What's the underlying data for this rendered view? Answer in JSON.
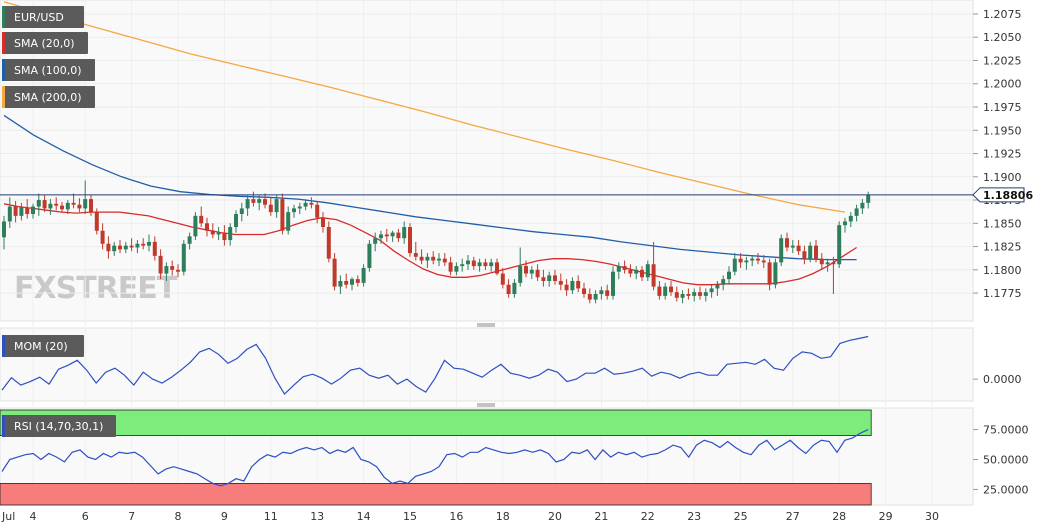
{
  "colors": {
    "up": "#2e7d5b",
    "down": "#c0392b",
    "sma20": "#d62c2c",
    "sma100": "#1f5fa8",
    "sma200": "#f5a742",
    "price_line": "#1f3c74",
    "mom": "#2d4fc2",
    "rsi": "#2d4fc2",
    "rsi_over": "#7dec7d",
    "rsi_under": "#f77c7c",
    "legend_bg": "#5a5a5a"
  },
  "watermark": "FXSTREET",
  "chart_data": {
    "type": "candlestick",
    "symbol": "EUR/USD",
    "current_price": "1.18806",
    "price_axis": {
      "ylim": [
        1.1745,
        1.209
      ],
      "ticks": [
        "1.2075",
        "1.2050",
        "1.2025",
        "1.2000",
        "1.1975",
        "1.1950",
        "1.1925",
        "1.1900",
        "1.1875",
        "1.1850",
        "1.1825",
        "1.1800",
        "1.1775"
      ]
    },
    "x_ticks": [
      {
        "label": "Jul",
        "i": 0
      },
      {
        "label": "4",
        "i": 5
      },
      {
        "label": "6",
        "i": 14
      },
      {
        "label": "7",
        "i": 22
      },
      {
        "label": "8",
        "i": 30
      },
      {
        "label": "9",
        "i": 38
      },
      {
        "label": "11",
        "i": 46
      },
      {
        "label": "13",
        "i": 54
      },
      {
        "label": "14",
        "i": 62
      },
      {
        "label": "15",
        "i": 70
      },
      {
        "label": "16",
        "i": 78
      },
      {
        "label": "18",
        "i": 86
      },
      {
        "label": "20",
        "i": 95
      },
      {
        "label": "21",
        "i": 103
      },
      {
        "label": "22",
        "i": 111
      },
      {
        "label": "23",
        "i": 119
      },
      {
        "label": "25",
        "i": 127
      },
      {
        "label": "27",
        "i": 136
      },
      {
        "label": "28",
        "i": 144
      },
      {
        "label": "29",
        "i": 152
      },
      {
        "label": "30",
        "i": 160
      }
    ],
    "candles": [
      [
        1.1835,
        1.1858,
        1.1822,
        1.1852
      ],
      [
        1.1852,
        1.1878,
        1.1845,
        1.1868
      ],
      [
        1.1868,
        1.1874,
        1.1851,
        1.1858
      ],
      [
        1.1858,
        1.1872,
        1.1853,
        1.1867
      ],
      [
        1.1867,
        1.1876,
        1.1855,
        1.186
      ],
      [
        1.186,
        1.1871,
        1.1855,
        1.1868
      ],
      [
        1.1868,
        1.1882,
        1.1858,
        1.1875
      ],
      [
        1.1875,
        1.188,
        1.1862,
        1.1866
      ],
      [
        1.1866,
        1.1876,
        1.1859,
        1.1871
      ],
      [
        1.1871,
        1.1878,
        1.1864,
        1.1869
      ],
      [
        1.1869,
        1.1873,
        1.1862,
        1.1865
      ],
      [
        1.1865,
        1.1875,
        1.186,
        1.1872
      ],
      [
        1.1872,
        1.1882,
        1.1866,
        1.187
      ],
      [
        1.187,
        1.1877,
        1.1862,
        1.1866
      ],
      [
        1.1866,
        1.1896,
        1.186,
        1.1876
      ],
      [
        1.1876,
        1.1881,
        1.1858,
        1.1862
      ],
      [
        1.1862,
        1.1866,
        1.1838,
        1.1842
      ],
      [
        1.1842,
        1.185,
        1.1822,
        1.1828
      ],
      [
        1.1828,
        1.1836,
        1.1812,
        1.182
      ],
      [
        1.182,
        1.183,
        1.1815,
        1.1826
      ],
      [
        1.1826,
        1.1832,
        1.1818,
        1.1822
      ],
      [
        1.1822,
        1.183,
        1.1818,
        1.1826
      ],
      [
        1.1826,
        1.1834,
        1.182,
        1.1824
      ],
      [
        1.1824,
        1.1832,
        1.1818,
        1.1828
      ],
      [
        1.1828,
        1.1834,
        1.1822,
        1.1826
      ],
      [
        1.1826,
        1.1838,
        1.182,
        1.183
      ],
      [
        1.183,
        1.1836,
        1.181,
        1.1815
      ],
      [
        1.1815,
        1.1822,
        1.179,
        1.1796
      ],
      [
        1.1796,
        1.1808,
        1.1788,
        1.1804
      ],
      [
        1.1804,
        1.181,
        1.1794,
        1.18
      ],
      [
        1.18,
        1.1806,
        1.1792,
        1.1798
      ],
      [
        1.1798,
        1.1832,
        1.1794,
        1.1828
      ],
      [
        1.1828,
        1.184,
        1.1822,
        1.1836
      ],
      [
        1.1836,
        1.1862,
        1.1832,
        1.1858
      ],
      [
        1.1858,
        1.1868,
        1.1846,
        1.185
      ],
      [
        1.185,
        1.1856,
        1.1836,
        1.1842
      ],
      [
        1.1842,
        1.185,
        1.1834,
        1.1838
      ],
      [
        1.1838,
        1.1846,
        1.1832,
        1.184
      ],
      [
        1.184,
        1.1848,
        1.1826,
        1.1832
      ],
      [
        1.1832,
        1.185,
        1.1826,
        1.1846
      ],
      [
        1.1846,
        1.1864,
        1.184,
        1.186
      ],
      [
        1.186,
        1.1872,
        1.1852,
        1.1866
      ],
      [
        1.1866,
        1.188,
        1.1858,
        1.1876
      ],
      [
        1.1876,
        1.1884,
        1.1868,
        1.1872
      ],
      [
        1.1872,
        1.188,
        1.1864,
        1.1876
      ],
      [
        1.1876,
        1.1882,
        1.1866,
        1.187
      ],
      [
        1.187,
        1.1878,
        1.1858,
        1.1862
      ],
      [
        1.1862,
        1.188,
        1.1856,
        1.1876
      ],
      [
        1.1876,
        1.1882,
        1.1838,
        1.1842
      ],
      [
        1.1842,
        1.1868,
        1.1838,
        1.1862
      ],
      [
        1.1862,
        1.187,
        1.1856,
        1.1866
      ],
      [
        1.1866,
        1.1872,
        1.186,
        1.1868
      ],
      [
        1.1868,
        1.1876,
        1.1864,
        1.1872
      ],
      [
        1.1872,
        1.1878,
        1.1866,
        1.187
      ],
      [
        1.187,
        1.1874,
        1.185,
        1.1856
      ],
      [
        1.1856,
        1.1862,
        1.184,
        1.1846
      ],
      [
        1.1846,
        1.1852,
        1.1808,
        1.1812
      ],
      [
        1.1812,
        1.1818,
        1.1778,
        1.1782
      ],
      [
        1.1782,
        1.1794,
        1.1774,
        1.1788
      ],
      [
        1.1788,
        1.1796,
        1.178,
        1.1784
      ],
      [
        1.1784,
        1.1792,
        1.1778,
        1.179
      ],
      [
        1.179,
        1.1794,
        1.1782,
        1.1786
      ],
      [
        1.1786,
        1.1806,
        1.1782,
        1.1802
      ],
      [
        1.1802,
        1.1832,
        1.1798,
        1.1828
      ],
      [
        1.1828,
        1.184,
        1.182,
        1.1834
      ],
      [
        1.1834,
        1.1842,
        1.1828,
        1.1838
      ],
      [
        1.1838,
        1.1844,
        1.183,
        1.1836
      ],
      [
        1.1836,
        1.1842,
        1.183,
        1.184
      ],
      [
        1.184,
        1.1844,
        1.183,
        1.1834
      ],
      [
        1.1834,
        1.1852,
        1.1828,
        1.1846
      ],
      [
        1.1846,
        1.185,
        1.1814,
        1.1818
      ],
      [
        1.1818,
        1.183,
        1.181,
        1.1814
      ],
      [
        1.1814,
        1.1822,
        1.1806,
        1.181
      ],
      [
        1.181,
        1.1818,
        1.1802,
        1.1814
      ],
      [
        1.1814,
        1.182,
        1.1806,
        1.181
      ],
      [
        1.181,
        1.1818,
        1.1804,
        1.1812
      ],
      [
        1.1812,
        1.1818,
        1.1804,
        1.1808
      ],
      [
        1.1808,
        1.1814,
        1.1794,
        1.1798
      ],
      [
        1.1798,
        1.1808,
        1.1794,
        1.1804
      ],
      [
        1.1804,
        1.1812,
        1.1798,
        1.1806
      ],
      [
        1.1806,
        1.1816,
        1.18,
        1.181
      ],
      [
        1.181,
        1.1814,
        1.18,
        1.1804
      ],
      [
        1.1804,
        1.1812,
        1.1798,
        1.1808
      ],
      [
        1.1808,
        1.1812,
        1.18,
        1.1804
      ],
      [
        1.1804,
        1.1812,
        1.1798,
        1.1808
      ],
      [
        1.1808,
        1.1812,
        1.1794,
        1.1796
      ],
      [
        1.1796,
        1.1802,
        1.178,
        1.1784
      ],
      [
        1.1784,
        1.179,
        1.177,
        1.1774
      ],
      [
        1.1774,
        1.179,
        1.177,
        1.1786
      ],
      [
        1.1786,
        1.1824,
        1.1782,
        1.1804
      ],
      [
        1.1804,
        1.181,
        1.1792,
        1.1796
      ],
      [
        1.1796,
        1.1804,
        1.179,
        1.18
      ],
      [
        1.18,
        1.1806,
        1.1788,
        1.1792
      ],
      [
        1.1792,
        1.18,
        1.1782,
        1.1788
      ],
      [
        1.1788,
        1.1798,
        1.1782,
        1.1794
      ],
      [
        1.1794,
        1.18,
        1.1784,
        1.1788
      ],
      [
        1.1788,
        1.1796,
        1.1778,
        1.1784
      ],
      [
        1.1784,
        1.179,
        1.1772,
        1.1778
      ],
      [
        1.1778,
        1.1792,
        1.1774,
        1.1788
      ],
      [
        1.1788,
        1.1794,
        1.1776,
        1.178
      ],
      [
        1.178,
        1.1786,
        1.177,
        1.1774
      ],
      [
        1.1774,
        1.178,
        1.1764,
        1.1768
      ],
      [
        1.1768,
        1.1778,
        1.1764,
        1.1774
      ],
      [
        1.1774,
        1.1782,
        1.1768,
        1.1778
      ],
      [
        1.1778,
        1.1784,
        1.1768,
        1.1772
      ],
      [
        1.1772,
        1.1804,
        1.1768,
        1.1798
      ],
      [
        1.1798,
        1.1808,
        1.179,
        1.1804
      ],
      [
        1.1804,
        1.181,
        1.1796,
        1.18
      ],
      [
        1.18,
        1.1806,
        1.1792,
        1.1796
      ],
      [
        1.1796,
        1.1804,
        1.179,
        1.18
      ],
      [
        1.18,
        1.1804,
        1.1788,
        1.1792
      ],
      [
        1.1792,
        1.181,
        1.1788,
        1.1806
      ],
      [
        1.1806,
        1.183,
        1.1778,
        1.1782
      ],
      [
        1.1782,
        1.1788,
        1.1768,
        1.1772
      ],
      [
        1.1772,
        1.1786,
        1.1768,
        1.1782
      ],
      [
        1.1782,
        1.1788,
        1.1772,
        1.1776
      ],
      [
        1.1776,
        1.1782,
        1.1766,
        1.177
      ],
      [
        1.177,
        1.1778,
        1.1764,
        1.1774
      ],
      [
        1.1774,
        1.178,
        1.1768,
        1.1772
      ],
      [
        1.1772,
        1.178,
        1.1766,
        1.1776
      ],
      [
        1.1776,
        1.1782,
        1.1768,
        1.1772
      ],
      [
        1.1772,
        1.178,
        1.1766,
        1.1776
      ],
      [
        1.1776,
        1.1784,
        1.177,
        1.178
      ],
      [
        1.178,
        1.1788,
        1.1772,
        1.1784
      ],
      [
        1.1784,
        1.1794,
        1.1778,
        1.179
      ],
      [
        1.179,
        1.1804,
        1.1784,
        1.1798
      ],
      [
        1.1798,
        1.1818,
        1.1794,
        1.1812
      ],
      [
        1.1812,
        1.1818,
        1.1802,
        1.1808
      ],
      [
        1.1808,
        1.1814,
        1.18,
        1.181
      ],
      [
        1.181,
        1.1816,
        1.1804,
        1.1812
      ],
      [
        1.1812,
        1.1818,
        1.1806,
        1.181
      ],
      [
        1.181,
        1.1816,
        1.1802,
        1.1808
      ],
      [
        1.1808,
        1.1812,
        1.1778,
        1.1784
      ],
      [
        1.1784,
        1.1812,
        1.178,
        1.1808
      ],
      [
        1.1808,
        1.1838,
        1.1804,
        1.1834
      ],
      [
        1.1834,
        1.184,
        1.182,
        1.1824
      ],
      [
        1.1824,
        1.1832,
        1.1818,
        1.1826
      ],
      [
        1.1826,
        1.1832,
        1.1816,
        1.182
      ],
      [
        1.182,
        1.1826,
        1.1806,
        1.1812
      ],
      [
        1.1812,
        1.183,
        1.1808,
        1.1826
      ],
      [
        1.1826,
        1.1832,
        1.1808,
        1.1812
      ],
      [
        1.1812,
        1.1818,
        1.18,
        1.1806
      ],
      [
        1.1806,
        1.1812,
        1.1798,
        1.1808
      ],
      [
        1.1808,
        1.1814,
        1.1774,
        1.1806
      ],
      [
        1.1806,
        1.1852,
        1.1802,
        1.1848
      ],
      [
        1.1848,
        1.1856,
        1.184,
        1.1852
      ],
      [
        1.1852,
        1.1862,
        1.1846,
        1.1858
      ],
      [
        1.1858,
        1.187,
        1.1852,
        1.1866
      ],
      [
        1.1866,
        1.1876,
        1.186,
        1.1872
      ],
      [
        1.1872,
        1.1884,
        1.1866,
        1.1881
      ]
    ],
    "series": [
      {
        "name": "SMA (20,0)",
        "color": "#d62c2c",
        "values": [
          1.1871,
          1.1868,
          1.1866,
          1.1864,
          1.1862,
          1.1861,
          1.1862,
          1.1862,
          1.1862,
          1.186,
          1.1858,
          1.1854,
          1.185,
          1.1846,
          1.1843,
          1.184,
          1.1838,
          1.1838,
          1.1838,
          1.1842,
          1.1848,
          1.1853,
          1.1856,
          1.1854,
          1.1848,
          1.184,
          1.1832,
          1.182,
          1.181,
          1.1801,
          1.1795,
          1.1792,
          1.1792,
          1.1794,
          1.1798,
          1.1802,
          1.1806,
          1.181,
          1.1812,
          1.1812,
          1.1811,
          1.1809,
          1.1806,
          1.1802,
          1.1798,
          1.1794,
          1.179,
          1.1786,
          1.1784,
          1.1784,
          1.1785,
          1.1785,
          1.1785,
          1.1785,
          1.1787,
          1.179,
          1.1796,
          1.1804,
          1.1814,
          1.1824
        ]
      },
      {
        "name": "SMA (100,0)",
        "color": "#1f5fa8",
        "values": [
          1.1966,
          1.1945,
          1.1928,
          1.1913,
          1.19,
          1.189,
          1.1884,
          1.1881,
          1.1879,
          1.1878,
          1.1876,
          1.1872,
          1.1867,
          1.1862,
          1.1857,
          1.1853,
          1.1849,
          1.1845,
          1.1841,
          1.1838,
          1.1835,
          1.183,
          1.1826,
          1.1822,
          1.1819,
          1.1816,
          1.1814,
          1.1812,
          1.1811,
          1.1811
        ]
      },
      {
        "name": "SMA (200,0)",
        "color": "#f5a742",
        "values": [
          1.2088,
          1.2074,
          1.206,
          1.2046,
          1.2032,
          1.202,
          1.2008,
          1.1996,
          1.1983,
          1.197,
          1.1956,
          1.1943,
          1.193,
          1.1918,
          1.1905,
          1.1893,
          1.1881,
          1.187,
          1.1862
        ]
      }
    ],
    "indicators": {
      "mom": {
        "name": "MOM (20)",
        "tick": "0.0000",
        "values": [
          -0.22,
          0.03,
          -0.12,
          -0.05,
          0.04,
          -0.1,
          0.2,
          0.28,
          0.38,
          0.18,
          -0.08,
          0.14,
          0.22,
          0.08,
          -0.12,
          0.14,
          0.0,
          -0.08,
          0.04,
          0.18,
          0.34,
          0.55,
          0.62,
          0.5,
          0.32,
          0.42,
          0.6,
          0.7,
          0.42,
          0.02,
          -0.3,
          -0.12,
          0.05,
          0.1,
          0.02,
          -0.1,
          0.02,
          0.18,
          0.22,
          0.08,
          0.02,
          0.08,
          -0.1,
          0.0,
          -0.15,
          -0.26,
          0.02,
          0.38,
          0.22,
          0.2,
          0.12,
          0.04,
          0.18,
          0.3,
          0.12,
          0.08,
          0.02,
          0.08,
          0.2,
          0.14,
          -0.05,
          0.0,
          0.12,
          0.12,
          0.22,
          0.1,
          0.12,
          0.16,
          0.22,
          0.06,
          0.14,
          0.1,
          0.02,
          0.1,
          0.14,
          0.08,
          0.08,
          0.3,
          0.32,
          0.34,
          0.3,
          0.4,
          0.22,
          0.18,
          0.42,
          0.55,
          0.52,
          0.42,
          0.45,
          0.72,
          0.78,
          0.82,
          0.86
        ]
      },
      "rsi": {
        "name": "RSI (14,70,30,1)",
        "overbought": 70,
        "oversold": 30,
        "ylim": [
          12,
          93
        ],
        "ticks": [
          "75.0000",
          "50.0000",
          "25.0000"
        ],
        "tick_values": [
          75,
          50,
          25
        ],
        "values": [
          40,
          50,
          52,
          54,
          55,
          50,
          55,
          52,
          48,
          56,
          58,
          52,
          50,
          55,
          52,
          56,
          55,
          56,
          52,
          45,
          38,
          42,
          44,
          42,
          40,
          38,
          34,
          30,
          28,
          30,
          34,
          32,
          44,
          50,
          54,
          52,
          56,
          55,
          58,
          60,
          58,
          60,
          55,
          58,
          56,
          60,
          50,
          48,
          44,
          35,
          30,
          32,
          30,
          36,
          38,
          40,
          44,
          54,
          55,
          52,
          56,
          56,
          60,
          58,
          56,
          55,
          56,
          58,
          56,
          58,
          55,
          48,
          50,
          56,
          55,
          58,
          50,
          58,
          52,
          56,
          54,
          56,
          52,
          54,
          55,
          58,
          62,
          60,
          52,
          62,
          66,
          64,
          60,
          65,
          60,
          56,
          54,
          62,
          66,
          58,
          62,
          66,
          60,
          55,
          62,
          66,
          65,
          56,
          66,
          68,
          72,
          75
        ]
      }
    }
  }
}
